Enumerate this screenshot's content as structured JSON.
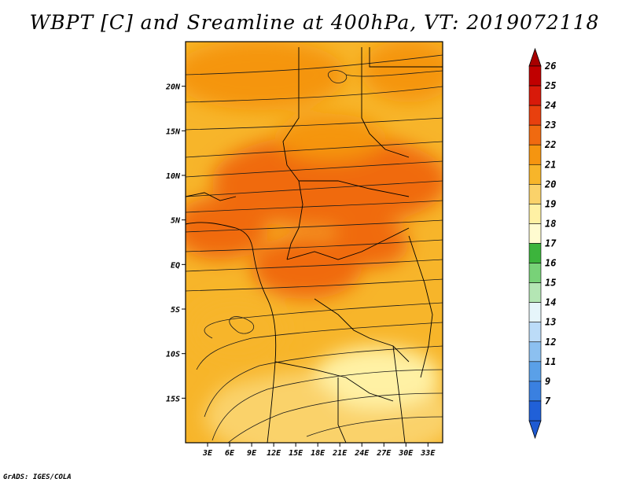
{
  "title": "WBPT [C] and Sreamline at 400hPa, VT: 2019072118",
  "credit": "GrADS: IGES/COLA",
  "map": {
    "lat_labels": [
      "20N",
      "15N",
      "10N",
      "5N",
      "EQ",
      "5S",
      "10S",
      "15S"
    ],
    "lat_values": [
      20,
      15,
      10,
      5,
      0,
      -5,
      -10,
      -15
    ],
    "lon_labels": [
      "3E",
      "6E",
      "9E",
      "12E",
      "15E",
      "18E",
      "21E",
      "24E",
      "27E",
      "30E",
      "33E"
    ],
    "lon_values": [
      3,
      6,
      9,
      12,
      15,
      18,
      21,
      24,
      27,
      30,
      33
    ],
    "lon_range": [
      0,
      35
    ],
    "lat_range": [
      -20,
      25
    ]
  },
  "colorbar": {
    "labels": [
      "26",
      "25",
      "24",
      "23",
      "22",
      "21",
      "20",
      "19",
      "18",
      "17",
      "16",
      "15",
      "14",
      "13",
      "12",
      "11",
      "9",
      "7"
    ],
    "colors": [
      "#c00000",
      "#d81a0a",
      "#e8400e",
      "#f06a10",
      "#f59510",
      "#f7b52a",
      "#fad26a",
      "#fff1a4",
      "#fffbd0",
      "#3cb43c",
      "#78d278",
      "#b4e6b4",
      "#e6f5fa",
      "#bcdcf8",
      "#8cc0f0",
      "#5aa0e8",
      "#3a80e0",
      "#2060d8"
    ],
    "top_arrow_color": "#a80000",
    "bottom_arrow_color": "#1e5ad2"
  }
}
